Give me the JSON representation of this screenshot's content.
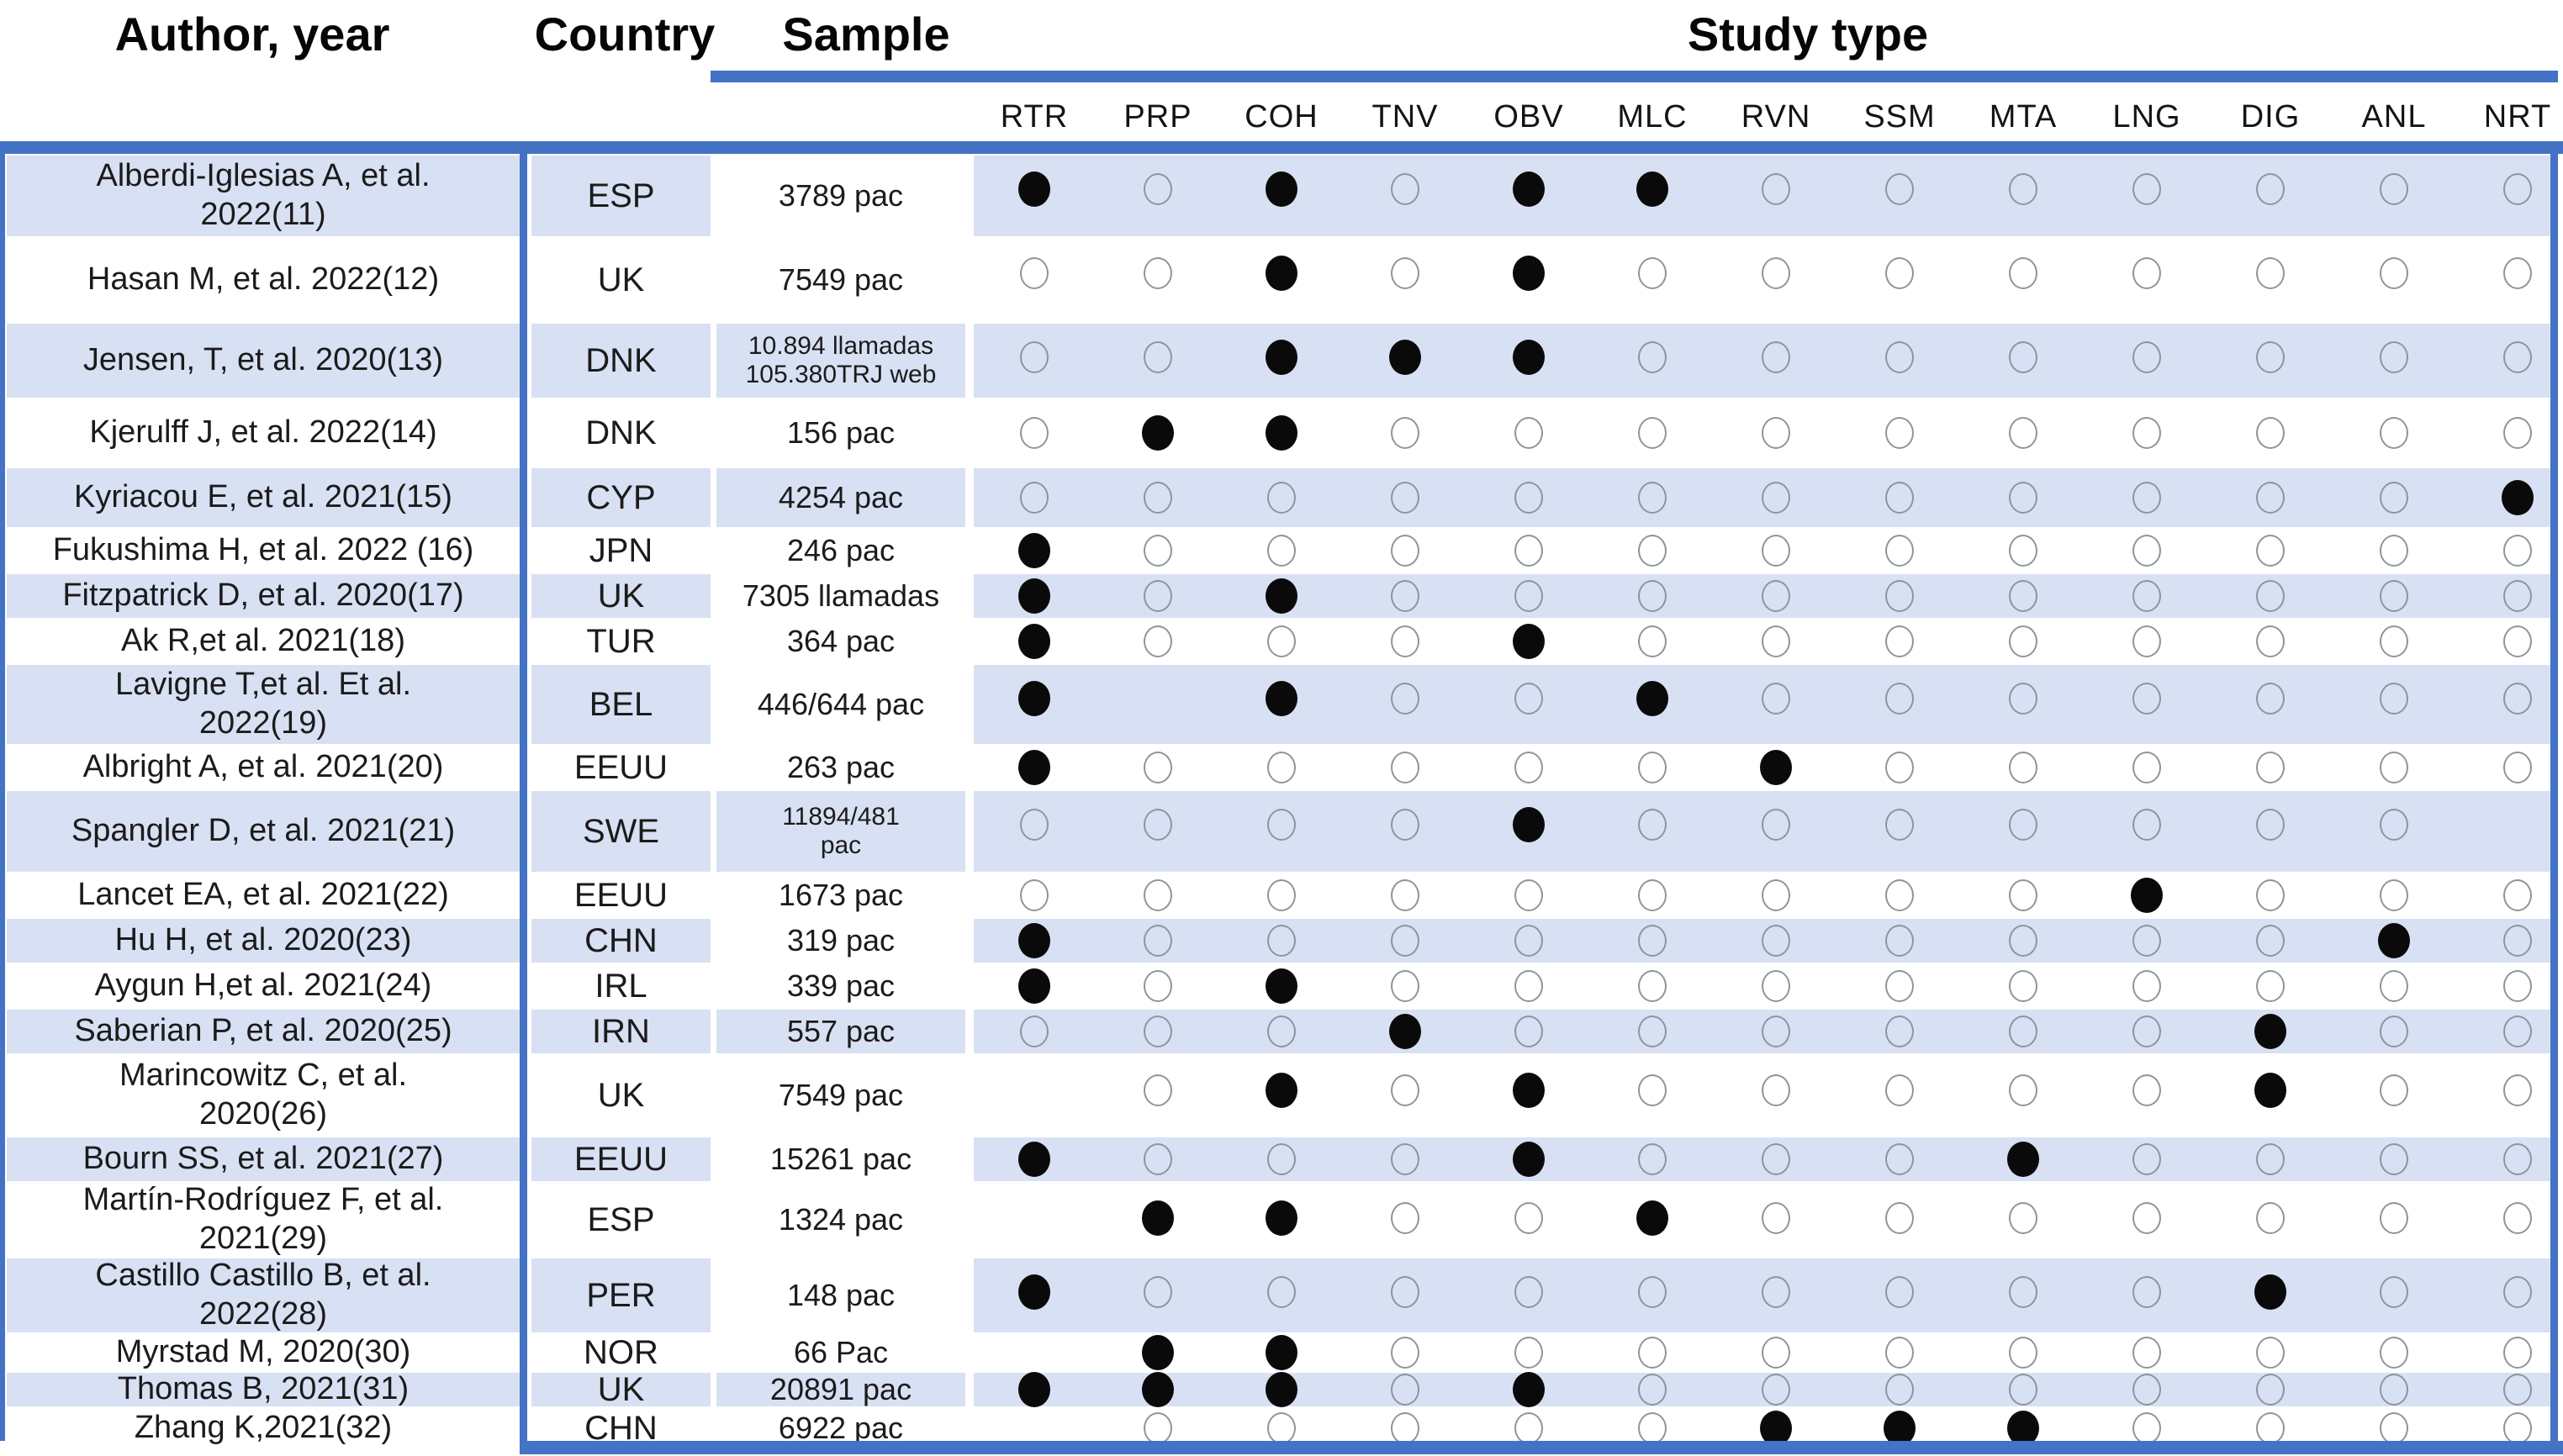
{
  "colors": {
    "accent": "#4472C4",
    "row_shade": "#D8E1F3",
    "dot_fill": "#0A0A0A",
    "circle_outline": "#8F949C"
  },
  "header": {
    "author": "Author, year",
    "country": "Country",
    "sample": "Sample",
    "study_type": "Study type"
  },
  "study_type_columns": [
    "RTR",
    "PRP",
    "COH",
    "TNV",
    "OBV",
    "MLC",
    "RVN",
    "SSM",
    "MTA",
    "LNG",
    "DIG",
    "ANL",
    "NRT"
  ],
  "rows": [
    {
      "author": "Alberdi-Iglesias A, et al.\n2022(11)",
      "country": "ESP",
      "sample": "3789 pac",
      "shaded": true,
      "sample_shaded": false,
      "dots": [
        "filled",
        "empty",
        "filled",
        "empty",
        "filled",
        "filled",
        "empty",
        "empty",
        "empty",
        "empty",
        "empty",
        "empty",
        "empty"
      ]
    },
    {
      "author": "Hasan M, et al.  2022(12)",
      "country": "UK",
      "sample": "7549 pac",
      "shaded": false,
      "sample_shaded": false,
      "dots": [
        "empty",
        "empty",
        "filled",
        "empty",
        "filled",
        "empty",
        "empty",
        "empty",
        "empty",
        "empty",
        "empty",
        "empty",
        "empty"
      ]
    },
    {
      "author": "Jensen, T, et al. 2020(13)",
      "country": "DNK",
      "sample": "10.894 llamadas\n105.380TRJ web",
      "shaded": true,
      "sample_shaded": true,
      "dots": [
        "empty",
        "empty",
        "filled",
        "filled",
        "filled",
        "empty",
        "empty",
        "empty",
        "empty",
        "empty",
        "empty",
        "empty",
        "empty"
      ]
    },
    {
      "author": "Kjerulff J, et al.  2022(14)",
      "country": "DNK",
      "sample": "156 pac",
      "shaded": false,
      "sample_shaded": false,
      "dots": [
        "empty",
        "filled",
        "filled",
        "empty",
        "empty",
        "empty",
        "empty",
        "empty",
        "empty",
        "empty",
        "empty",
        "empty",
        "empty"
      ]
    },
    {
      "author": "Kyriacou E, et al. 2021(15)",
      "country": "CYP",
      "sample": "4254 pac",
      "shaded": true,
      "sample_shaded": true,
      "dots": [
        "empty",
        "empty",
        "empty",
        "empty",
        "empty",
        "empty",
        "empty",
        "empty",
        "empty",
        "empty",
        "empty",
        "empty",
        "filled"
      ]
    },
    {
      "author": "Fukushima H, et al. 2022 (16)",
      "country": "JPN",
      "sample": "246 pac",
      "shaded": false,
      "sample_shaded": false,
      "dots": [
        "filled",
        "empty",
        "empty",
        "empty",
        "empty",
        "empty",
        "empty",
        "empty",
        "empty",
        "empty",
        "empty",
        "empty",
        "empty"
      ]
    },
    {
      "author": "Fitzpatrick D, et al. 2020(17)",
      "country": "UK",
      "sample": "7305 llamadas",
      "shaded": true,
      "sample_shaded": false,
      "dots": [
        "filled",
        "empty",
        "filled",
        "empty",
        "empty",
        "empty",
        "empty",
        "empty",
        "empty",
        "empty",
        "empty",
        "empty",
        "empty"
      ]
    },
    {
      "author": "Ak R,et al. 2021(18)",
      "country": "TUR",
      "sample": "364 pac",
      "shaded": false,
      "sample_shaded": false,
      "dots": [
        "filled",
        "empty",
        "empty",
        "empty",
        "filled",
        "empty",
        "empty",
        "empty",
        "empty",
        "empty",
        "empty",
        "empty",
        "empty"
      ]
    },
    {
      "author": "Lavigne T,et al. Et al.\n2022(19)",
      "country": "BEL",
      "sample": "446/644 pac",
      "shaded": true,
      "sample_shaded": false,
      "dots": [
        "filled",
        "none",
        "filled",
        "empty",
        "empty",
        "filled",
        "empty",
        "empty",
        "empty",
        "empty",
        "empty",
        "empty",
        "empty"
      ]
    },
    {
      "author": "Albright A, et al. 2021(20)",
      "country": "EEUU",
      "sample": "263 pac",
      "shaded": false,
      "sample_shaded": false,
      "dots": [
        "filled",
        "empty",
        "empty",
        "empty",
        "empty",
        "empty",
        "filled",
        "empty",
        "empty",
        "empty",
        "empty",
        "empty",
        "empty"
      ]
    },
    {
      "author": "Spangler D, et al. 2021(21)",
      "country": "SWE",
      "sample": "11894/481\npac",
      "shaded": true,
      "sample_shaded": true,
      "dots": [
        "empty",
        "empty",
        "empty",
        "empty",
        "filled",
        "empty",
        "empty",
        "empty",
        "empty",
        "empty",
        "empty",
        "empty",
        "none"
      ]
    },
    {
      "author": "Lancet EA, et al. 2021(22)",
      "country": "EEUU",
      "sample": "1673 pac",
      "shaded": false,
      "sample_shaded": false,
      "dots": [
        "empty",
        "empty",
        "empty",
        "empty",
        "empty",
        "empty",
        "empty",
        "empty",
        "empty",
        "filled",
        "empty",
        "empty",
        "empty"
      ]
    },
    {
      "author": "Hu H, et al.  2020(23)",
      "country": "CHN",
      "sample": "319 pac",
      "shaded": true,
      "sample_shaded": false,
      "dots": [
        "filled",
        "empty",
        "empty",
        "empty",
        "empty",
        "empty",
        "empty",
        "empty",
        "empty",
        "empty",
        "empty",
        "filled",
        "empty"
      ]
    },
    {
      "author": "Aygun H,et al. 2021(24)",
      "country": "IRL",
      "sample": "339 pac",
      "shaded": false,
      "sample_shaded": false,
      "dots": [
        "filled",
        "empty",
        "filled",
        "empty",
        "empty",
        "empty",
        "empty",
        "empty",
        "empty",
        "empty",
        "empty",
        "empty",
        "empty"
      ]
    },
    {
      "author": "Saberian P, et al. 2020(25)",
      "country": "IRN",
      "sample": "557 pac",
      "shaded": true,
      "sample_shaded": true,
      "dots": [
        "empty",
        "empty",
        "empty",
        "filled",
        "empty",
        "empty",
        "empty",
        "empty",
        "empty",
        "empty",
        "filled",
        "empty",
        "empty"
      ]
    },
    {
      "author": "Marincowitz C, et al.\n2020(26)",
      "country": "UK",
      "sample": "7549 pac",
      "shaded": false,
      "sample_shaded": false,
      "dots": [
        "none",
        "empty",
        "filled",
        "empty",
        "filled",
        "empty",
        "empty",
        "empty",
        "empty",
        "empty",
        "filled",
        "empty",
        "empty"
      ]
    },
    {
      "author": "Bourn SS, et al. 2021(27)",
      "country": "EEUU",
      "sample": "15261 pac",
      "shaded": true,
      "sample_shaded": false,
      "dots": [
        "filled",
        "empty",
        "empty",
        "empty",
        "filled",
        "empty",
        "empty",
        "empty",
        "filled",
        "empty",
        "empty",
        "empty",
        "empty"
      ]
    },
    {
      "author": "Martín-Rodríguez F, et al.\n2021(29)",
      "country": "ESP",
      "sample": "1324 pac",
      "shaded": false,
      "sample_shaded": false,
      "dots": [
        "none",
        "filled",
        "filled",
        "empty",
        "empty",
        "filled",
        "empty",
        "empty",
        "empty",
        "empty",
        "empty",
        "empty",
        "empty"
      ]
    },
    {
      "author": "Castillo Castillo B, et al.\n2022(28)",
      "country": "PER",
      "sample": "148 pac",
      "shaded": true,
      "sample_shaded": false,
      "dots": [
        "filled",
        "empty",
        "empty",
        "empty",
        "empty",
        "empty",
        "empty",
        "empty",
        "empty",
        "empty",
        "filled",
        "empty",
        "empty"
      ]
    },
    {
      "author": "Myrstad M, 2020(30)",
      "country": "NOR",
      "sample": "66 Pac",
      "shaded": false,
      "sample_shaded": false,
      "dots": [
        "none",
        "filled",
        "filled",
        "empty",
        "empty",
        "empty",
        "empty",
        "empty",
        "empty",
        "empty",
        "empty",
        "empty",
        "empty"
      ]
    },
    {
      "author": "Thomas B, 2021(31)",
      "country": "UK",
      "sample": "20891 pac",
      "shaded": true,
      "sample_shaded": true,
      "dots": [
        "filled",
        "filled",
        "filled",
        "empty",
        "filled",
        "empty",
        "empty",
        "empty",
        "empty",
        "empty",
        "empty",
        "empty",
        "empty"
      ]
    },
    {
      "author": "Zhang K,2021(32)",
      "country": "CHN",
      "sample": "6922 pac",
      "shaded": false,
      "sample_shaded": false,
      "dots": [
        "none",
        "empty",
        "empty",
        "empty",
        "empty",
        "empty",
        "filled",
        "filled",
        "filled",
        "empty",
        "empty",
        "empty",
        "empty"
      ]
    }
  ]
}
